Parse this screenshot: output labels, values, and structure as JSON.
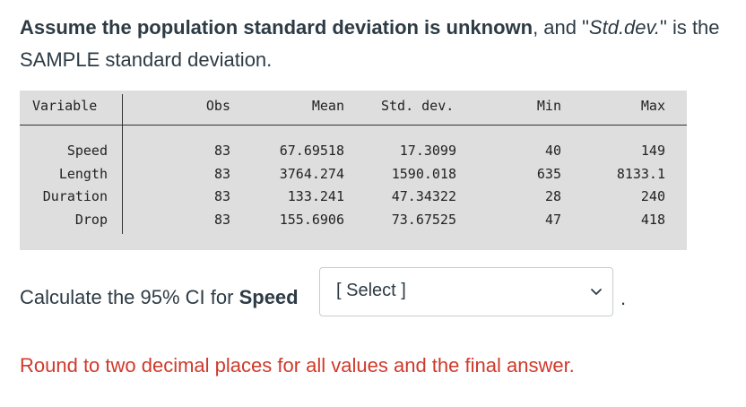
{
  "intro": {
    "bold": "Assume the population standard deviation is unknown",
    "mid": ", and \"",
    "italic": "Std.dev.",
    "end": "\" is the SAMPLE standard deviation."
  },
  "table": {
    "headers": [
      "Variable",
      "Obs",
      "Mean",
      "Std. dev.",
      "Min",
      "Max"
    ],
    "rows": [
      [
        "Speed",
        "83",
        "67.69518",
        "17.3099",
        "40",
        "149"
      ],
      [
        "Length",
        "83",
        "3764.274",
        "1590.018",
        "635",
        "8133.1"
      ],
      [
        "Duration",
        "83",
        "133.241",
        "47.34322",
        "28",
        "240"
      ],
      [
        "Drop",
        "83",
        "155.6906",
        "73.67525",
        "47",
        "418"
      ]
    ]
  },
  "question": {
    "prefix": "Calculate the 95% CI for ",
    "variable": "Speed"
  },
  "select": {
    "selected": "[ Select ]",
    "icon": "chevron-down-icon"
  },
  "period": ".",
  "note": "Round to two decimal places for all values and the final answer.",
  "colors": {
    "note": "#d0392b",
    "table_bg": "#dedede",
    "text": "#2d3b45"
  }
}
